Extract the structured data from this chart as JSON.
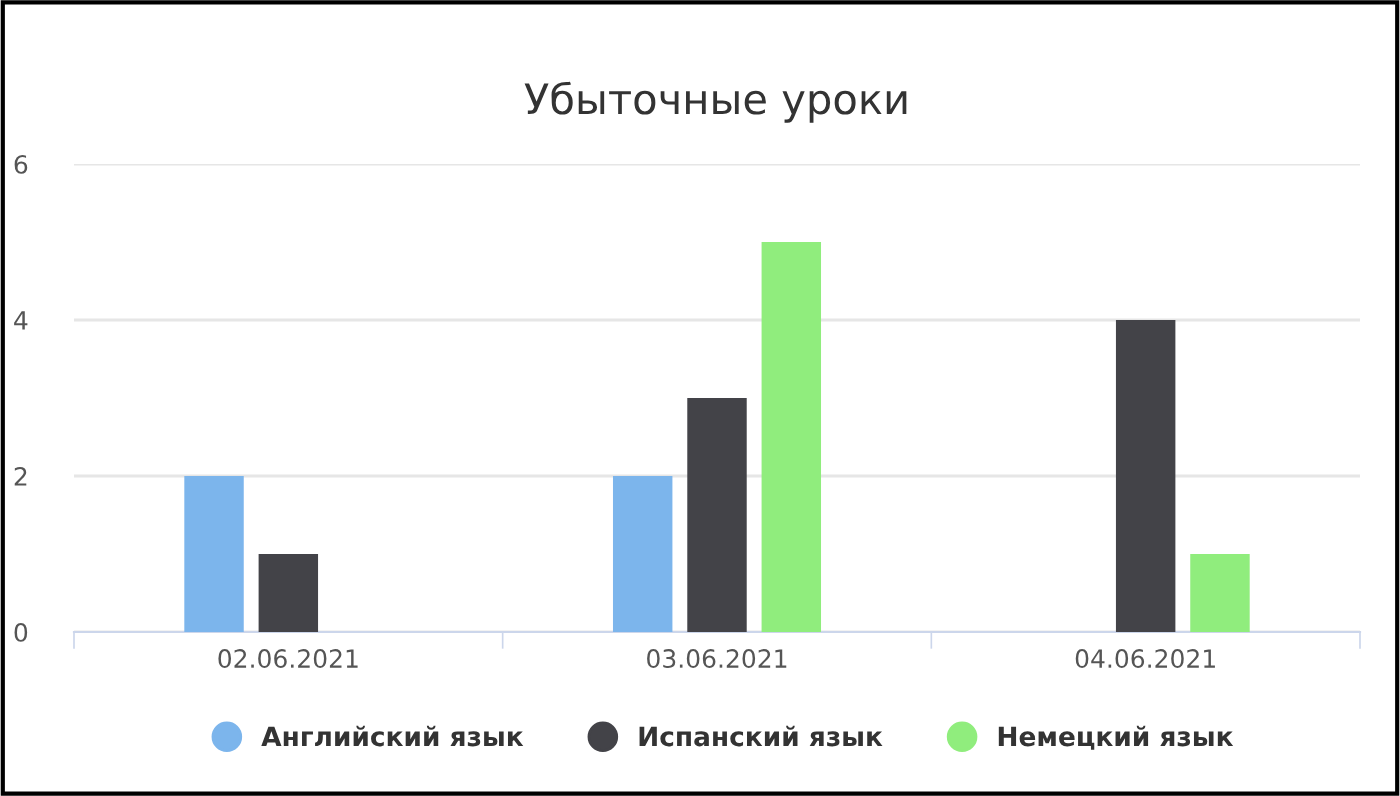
{
  "chart_data": {
    "type": "bar",
    "title": "Убыточные уроки",
    "categories": [
      "02.06.2021",
      "03.06.2021",
      "04.06.2021"
    ],
    "series": [
      {
        "name": "Английский язык",
        "color": "#7cb5ec",
        "values": [
          2,
          2,
          null
        ]
      },
      {
        "name": "Испанский язык",
        "color": "#434348",
        "values": [
          1,
          3,
          4
        ]
      },
      {
        "name": "Немецкий язык",
        "color": "#90ed7d",
        "values": [
          null,
          5,
          1
        ]
      }
    ],
    "ylim": [
      0,
      6
    ],
    "yticks": [
      0,
      2,
      4,
      6
    ],
    "grid": "y",
    "legend": "bottom"
  }
}
